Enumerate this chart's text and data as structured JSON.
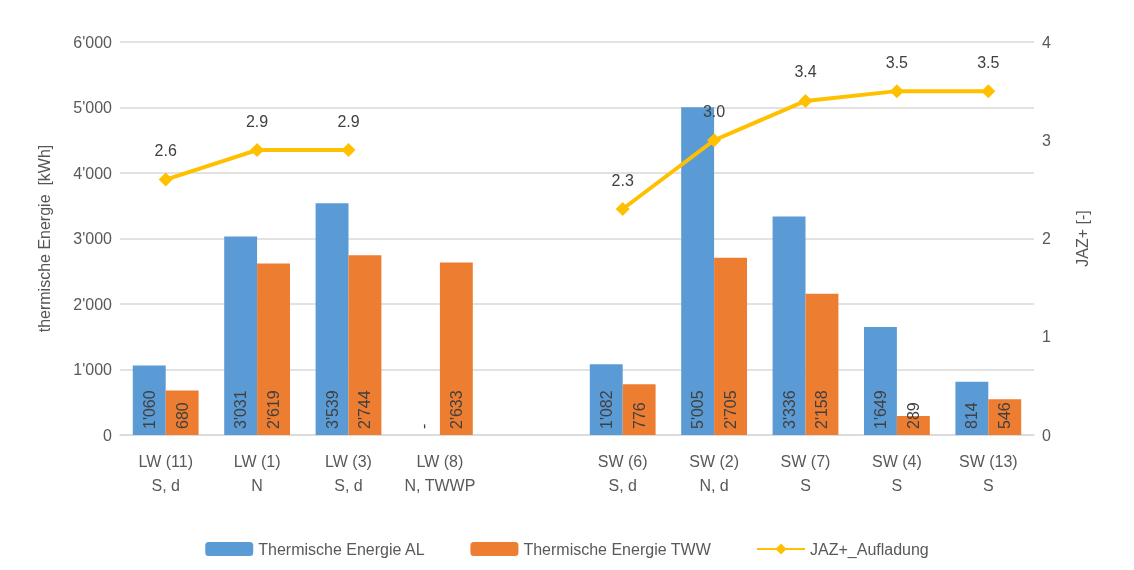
{
  "chart_data": {
    "type": "bar",
    "ylabel": "thermische Energie  [kWh]",
    "y2label": "JAZ+ [-]",
    "categories": [
      "LW (11)\nS, d",
      "LW (1)\nN",
      "LW (3)\nS, d",
      "LW (8)\nN, TWWP",
      null,
      "SW (6)\nS, d",
      "SW (2)\nN, d",
      "SW (7)\nS",
      "SW (4)\nS",
      "SW (13)\nS"
    ],
    "series": [
      {
        "name": "Thermische Energie AL",
        "color": "#5b9bd5",
        "values": [
          1060,
          3031,
          3539,
          null,
          null,
          1082,
          5005,
          3336,
          1649,
          814
        ],
        "value_labels": [
          "1'060",
          "3'031",
          "3'539",
          "-",
          null,
          "1'082",
          "5'005",
          "3'336",
          "1'649",
          "814"
        ]
      },
      {
        "name": "Thermische Energie TWW",
        "color": "#ed7d31",
        "values": [
          680,
          2619,
          2744,
          2633,
          null,
          776,
          2705,
          2158,
          289,
          546
        ],
        "value_labels": [
          "680",
          "2'619",
          "2'744",
          "2'633",
          null,
          "776",
          "2'705",
          "2'158",
          "289",
          "546"
        ]
      },
      {
        "name": "JAZ+_Aufladung",
        "type": "line",
        "axis": "y2",
        "color": "#ffc000",
        "marker": "diamond",
        "values": [
          2.6,
          2.9,
          2.9,
          null,
          null,
          2.3,
          3.0,
          3.4,
          3.5,
          3.5
        ],
        "value_labels": [
          "2.6",
          "2.9",
          "2.9",
          null,
          null,
          "2.3",
          "3.0",
          "3.4",
          "3.5",
          "3.5"
        ]
      }
    ],
    "ylim": [
      0,
      6000
    ],
    "yticks": [
      {
        "value": 0,
        "label": "0"
      },
      {
        "value": 1000,
        "label": "1'000"
      },
      {
        "value": 2000,
        "label": "2'000"
      },
      {
        "value": 3000,
        "label": "3'000"
      },
      {
        "value": 4000,
        "label": "4'000"
      },
      {
        "value": 5000,
        "label": "5'000"
      },
      {
        "value": 6000,
        "label": "6'000"
      }
    ],
    "y2lim": [
      0,
      4
    ],
    "y2ticks": [
      0,
      1,
      2,
      3,
      4
    ],
    "grid": "y",
    "legend": "bottom"
  }
}
